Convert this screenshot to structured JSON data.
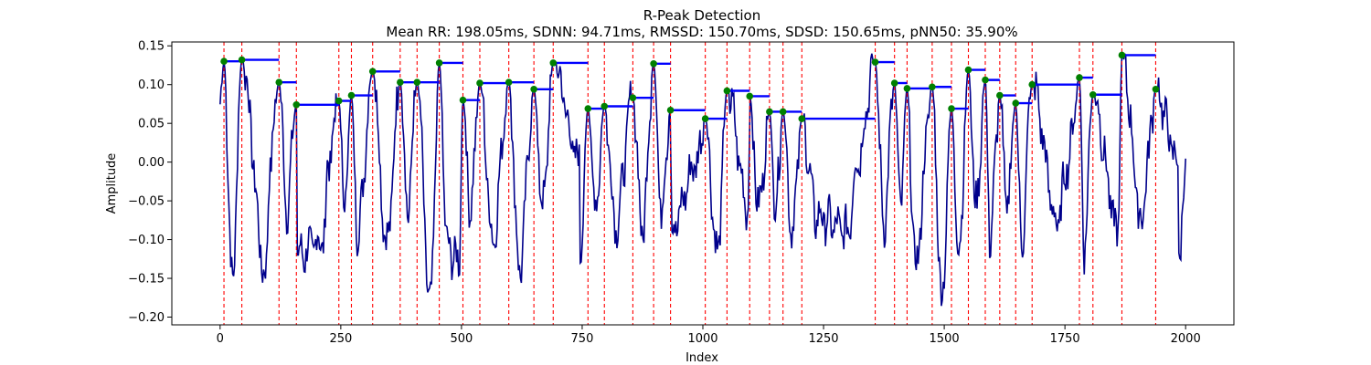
{
  "chart_data": {
    "type": "line",
    "title": "R-Peak Detection",
    "subtitle": "Mean RR: 198.05ms, SDNN: 94.71ms, RMSSD: 150.70ms, SDSD: 150.65ms, pNN50: 35.90%",
    "xlabel": "Index",
    "ylabel": "Amplitude",
    "xlim": [
      -100,
      2100
    ],
    "ylim": [
      -0.21,
      0.155
    ],
    "x_ticks": [
      0,
      250,
      500,
      750,
      1000,
      1250,
      1500,
      1750,
      2000
    ],
    "x_tick_labels": [
      "0",
      "250",
      "500",
      "750",
      "1000",
      "1250",
      "1500",
      "1750",
      "2000"
    ],
    "y_ticks": [
      -0.2,
      -0.15,
      -0.1,
      -0.05,
      0.0,
      0.05,
      0.1,
      0.15
    ],
    "y_tick_labels": [
      "−0.20",
      "−0.15",
      "−0.10",
      "−0.05",
      "0.00",
      "0.05",
      "0.10",
      "0.15"
    ],
    "grid": false,
    "legend": "none",
    "colors": {
      "signal": "#00008b",
      "peak_line": "#ff0000",
      "peak_marker": "#008000",
      "interval": "#0000ff"
    },
    "signal_trough_overrides": {
      "25": -0.155,
      "95": -0.15,
      "160": -0.12,
      "215": -0.1,
      "285": -0.09,
      "345": -0.105,
      "435": -0.19,
      "470": -0.11,
      "495": -0.13,
      "565": -0.1,
      "620": -0.14,
      "690": -0.09,
      "745": -0.12,
      "820": -0.08,
      "875": -0.09,
      "935": -0.09,
      "1030": -0.12,
      "1095": -0.06,
      "1185": -0.09,
      "1235": -0.07,
      "1300": -0.09,
      "1375": -0.08,
      "1440": -0.135,
      "1495": -0.18,
      "1530": -0.12,
      "1595": -0.1,
      "1660": -0.105,
      "1735": -0.08,
      "1790": -0.11,
      "1860": -0.09,
      "1910": -0.08,
      "1985": -0.125
    },
    "signal_series": {
      "name": "",
      "x_start": 0,
      "x_end": 2000,
      "comment_free_points": []
    },
    "peaks": {
      "x": [
        8,
        45,
        122,
        158,
        246,
        272,
        316,
        373,
        408,
        454,
        503,
        538,
        598,
        650,
        690,
        762,
        796,
        855,
        898,
        933,
        1005,
        1050,
        1097,
        1138,
        1166,
        1205,
        1357,
        1397,
        1423,
        1475,
        1515,
        1550,
        1585,
        1615,
        1648,
        1682,
        1780,
        1808,
        1868,
        1938
      ],
      "y": [
        0.13,
        0.132,
        0.103,
        0.074,
        0.079,
        0.086,
        0.117,
        0.103,
        0.103,
        0.128,
        0.08,
        0.102,
        0.103,
        0.094,
        0.128,
        0.069,
        0.072,
        0.083,
        0.127,
        0.067,
        0.056,
        0.092,
        0.085,
        0.065,
        0.065,
        0.056,
        0.129,
        0.102,
        0.095,
        0.097,
        0.069,
        0.119,
        0.106,
        0.086,
        0.076,
        0.1,
        0.109,
        0.087,
        0.138,
        0.094
      ]
    },
    "interval_segments": [
      {
        "x0": 8,
        "x1": 45,
        "y": 0.13
      },
      {
        "x0": 45,
        "x1": 122,
        "y": 0.132
      },
      {
        "x0": 122,
        "x1": 158,
        "y": 0.103
      },
      {
        "x0": 158,
        "x1": 246,
        "y": 0.074
      },
      {
        "x0": 246,
        "x1": 272,
        "y": 0.079
      },
      {
        "x0": 272,
        "x1": 316,
        "y": 0.086
      },
      {
        "x0": 316,
        "x1": 373,
        "y": 0.117
      },
      {
        "x0": 373,
        "x1": 408,
        "y": 0.103
      },
      {
        "x0": 408,
        "x1": 454,
        "y": 0.103
      },
      {
        "x0": 454,
        "x1": 503,
        "y": 0.128
      },
      {
        "x0": 503,
        "x1": 538,
        "y": 0.08
      },
      {
        "x0": 538,
        "x1": 598,
        "y": 0.102
      },
      {
        "x0": 598,
        "x1": 650,
        "y": 0.103
      },
      {
        "x0": 650,
        "x1": 690,
        "y": 0.094
      },
      {
        "x0": 690,
        "x1": 762,
        "y": 0.128
      },
      {
        "x0": 762,
        "x1": 796,
        "y": 0.069
      },
      {
        "x0": 796,
        "x1": 855,
        "y": 0.072
      },
      {
        "x0": 855,
        "x1": 898,
        "y": 0.083
      },
      {
        "x0": 898,
        "x1": 933,
        "y": 0.127
      },
      {
        "x0": 933,
        "x1": 1005,
        "y": 0.067
      },
      {
        "x0": 1005,
        "x1": 1050,
        "y": 0.056
      },
      {
        "x0": 1050,
        "x1": 1097,
        "y": 0.092
      },
      {
        "x0": 1097,
        "x1": 1138,
        "y": 0.085
      },
      {
        "x0": 1138,
        "x1": 1166,
        "y": 0.065
      },
      {
        "x0": 1166,
        "x1": 1205,
        "y": 0.065
      },
      {
        "x0": 1205,
        "x1": 1357,
        "y": 0.056
      },
      {
        "x0": 1357,
        "x1": 1397,
        "y": 0.129
      },
      {
        "x0": 1397,
        "x1": 1423,
        "y": 0.102
      },
      {
        "x0": 1423,
        "x1": 1475,
        "y": 0.095
      },
      {
        "x0": 1475,
        "x1": 1515,
        "y": 0.097
      },
      {
        "x0": 1515,
        "x1": 1550,
        "y": 0.069
      },
      {
        "x0": 1550,
        "x1": 1585,
        "y": 0.119
      },
      {
        "x0": 1585,
        "x1": 1615,
        "y": 0.106
      },
      {
        "x0": 1615,
        "x1": 1648,
        "y": 0.086
      },
      {
        "x0": 1648,
        "x1": 1682,
        "y": 0.076
      },
      {
        "x0": 1682,
        "x1": 1780,
        "y": 0.1
      },
      {
        "x0": 1780,
        "x1": 1808,
        "y": 0.109
      },
      {
        "x0": 1808,
        "x1": 1868,
        "y": 0.087
      },
      {
        "x0": 1868,
        "x1": 1938,
        "y": 0.138
      }
    ]
  }
}
